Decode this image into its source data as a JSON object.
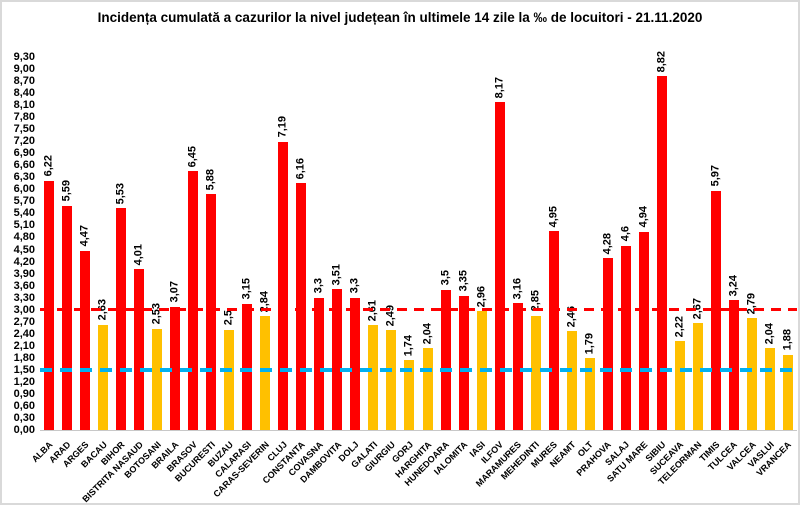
{
  "title": "Incidența cumulată a cazurilor la nivel județean în ultimele 14 zile la ‰ de locuitori - 21.11.2020",
  "chart_data": {
    "type": "bar",
    "title": "Incidența cumulată a cazurilor la nivel județean în ultimele 14 zile la ‰ de locuitori - 21.11.2020",
    "categories": [
      "ALBA",
      "ARAD",
      "ARGES",
      "BACAU",
      "BIHOR",
      "BISTRITA NASAUD",
      "BOTOSANI",
      "BRAILA",
      "BRASOV",
      "BUCURESTI",
      "BUZAU",
      "CALARASI",
      "CARAS-SEVERIN",
      "CLUJ",
      "CONSTANTA",
      "COVASNA",
      "DAMBOVITA",
      "DOLJ",
      "GALATI",
      "GIURGIU",
      "GORJ",
      "HARGHITA",
      "HUNEDOARA",
      "IALOMITA",
      "IASI",
      "ILFOV",
      "MARAMURES",
      "MEHEDINTI",
      "MURES",
      "NEAMT",
      "OLT",
      "PRAHOVA",
      "SALAJ",
      "SATU MARE",
      "SIBIU",
      "SUCEAVA",
      "TELEORMAN",
      "TIMIS",
      "TULCEA",
      "VALCEA",
      "VASLUI",
      "VRANCEA"
    ],
    "values": [
      6.22,
      5.59,
      4.47,
      2.63,
      5.53,
      4.01,
      2.53,
      3.07,
      6.45,
      5.88,
      2.5,
      3.15,
      2.84,
      7.19,
      6.16,
      3.3,
      3.51,
      3.3,
      2.61,
      2.49,
      1.74,
      2.04,
      3.5,
      3.35,
      2.96,
      8.17,
      3.16,
      2.85,
      4.95,
      2.46,
      1.79,
      4.28,
      4.6,
      4.94,
      8.82,
      2.22,
      2.67,
      5.97,
      3.24,
      2.79,
      2.04,
      1.88
    ],
    "value_labels": [
      "6,22",
      "5,59",
      "4,47",
      "2,63",
      "5,53",
      "4,01",
      "2,53",
      "3,07",
      "6,45",
      "5,88",
      "2,5",
      "3,15",
      "2,84",
      "7,19",
      "6,16",
      "3,3",
      "3,51",
      "3,3",
      "2,61",
      "2,49",
      "1,74",
      "2,04",
      "3,5",
      "3,35",
      "2,96",
      "8,17",
      "3,16",
      "2,85",
      "4,95",
      "2,46",
      "1,79",
      "4,28",
      "4,6",
      "4,94",
      "8,82",
      "2,22",
      "2,67",
      "5,97",
      "3,24",
      "2,79",
      "2,04",
      "1,88"
    ],
    "xlabel": "",
    "ylabel": "",
    "ylim": [
      0,
      9.3
    ],
    "ytick_step": 0.3,
    "decimal_separator": ",",
    "grid": false,
    "legend": false,
    "color_threshold": 3.0,
    "bar_color_above": "#FF0000",
    "bar_color_below": "#FFC000",
    "thresholds": [
      {
        "value": 3.0,
        "color": "#FF0000",
        "style": "dashed",
        "thickness": 3,
        "name": "red-zone-threshold-line"
      },
      {
        "value": 1.5,
        "color": "#00B0F0",
        "style": "dashed",
        "thickness": 4,
        "name": "yellow-zone-threshold-line"
      }
    ]
  }
}
